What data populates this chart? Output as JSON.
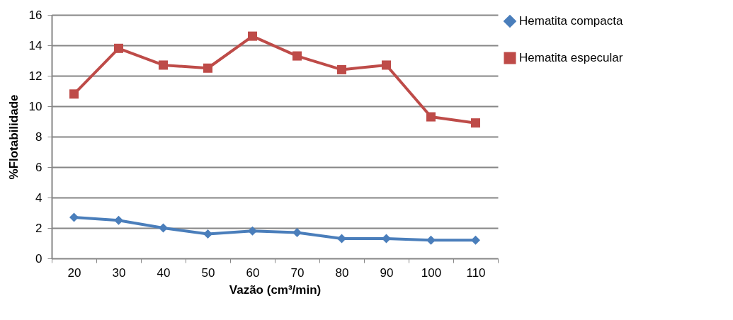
{
  "chart_data": {
    "type": "line",
    "xlabel": "Vazão (cm³/min)",
    "ylabel": "%Flotabilidade",
    "categories": [
      "20",
      "30",
      "40",
      "50",
      "60",
      "70",
      "80",
      "90",
      "100",
      "110"
    ],
    "series": [
      {
        "name": "Hematita compacta",
        "color": "#4a7ebb",
        "marker": "diamond",
        "values": [
          2.7,
          2.5,
          2.0,
          1.6,
          1.8,
          1.7,
          1.3,
          1.3,
          1.2,
          1.2
        ]
      },
      {
        "name": "Hematita especular",
        "color": "#be4b48",
        "marker": "square",
        "values": [
          10.8,
          13.8,
          12.7,
          12.5,
          14.6,
          13.3,
          12.4,
          12.7,
          9.3,
          8.9
        ]
      }
    ],
    "ylim": [
      0,
      16
    ],
    "yticks": [
      0,
      2,
      4,
      6,
      8,
      10,
      12,
      14,
      16
    ],
    "grid": "y",
    "legend": "right",
    "line_style": "solid"
  }
}
